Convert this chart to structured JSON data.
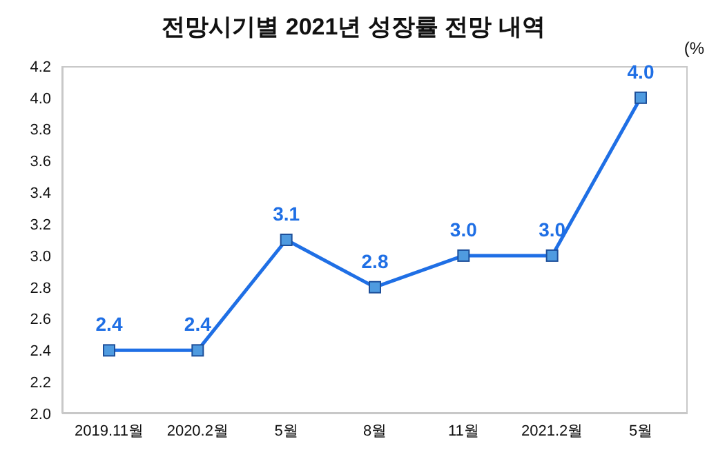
{
  "chart_data": {
    "type": "line",
    "title": "전망시기별 2021년 성장률 전망 내역",
    "ylabel": "(%",
    "categories": [
      "2019.11월",
      "2020.2월",
      "5월",
      "8월",
      "11월",
      "2021.2월",
      "5월"
    ],
    "series": [
      {
        "color": "#1f6fe5",
        "values": [
          2.4,
          2.4,
          3.1,
          2.8,
          3.0,
          3.0,
          4.0
        ],
        "value_labels": [
          "2.4",
          "2.4",
          "3.1",
          "2.8",
          "3.0",
          "3.0",
          "4.0"
        ]
      }
    ],
    "ylim": [
      2.0,
      4.2
    ],
    "yticks": [
      {
        "value": 2,
        "label": "2.0"
      },
      2.2,
      2.4,
      2.6,
      2.8,
      {
        "value": 3,
        "label": "3.0"
      },
      3.2,
      3.4,
      3.6,
      3.8,
      {
        "value": 4,
        "label": "4.0"
      },
      4.2
    ],
    "marker": "square",
    "line_style": "solid",
    "grid": false
  }
}
